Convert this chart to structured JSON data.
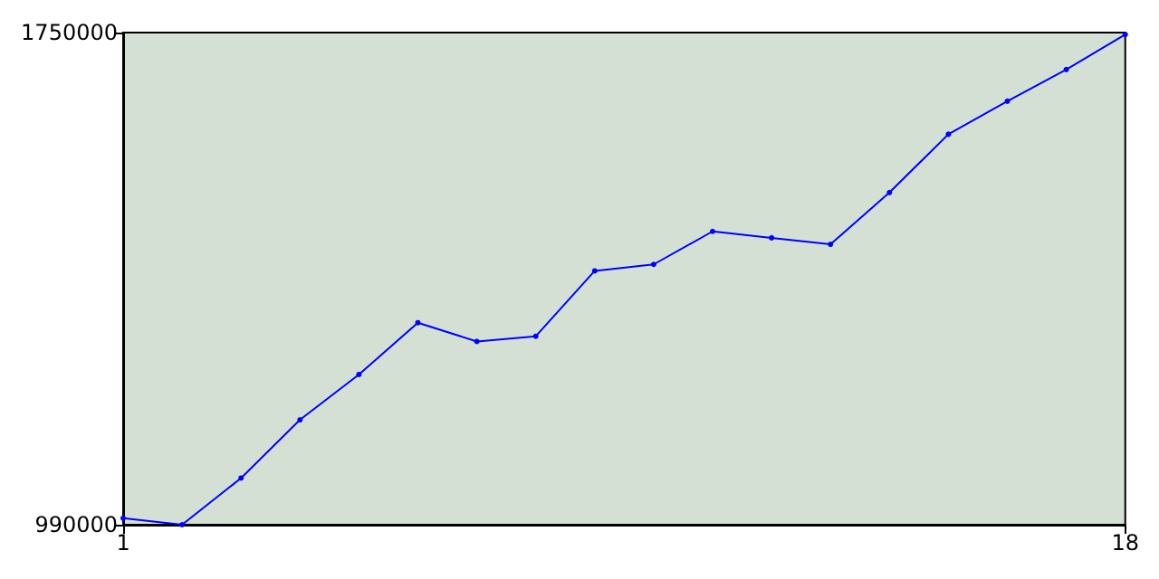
{
  "chart_data": {
    "type": "line",
    "x": [
      1,
      2,
      3,
      4,
      5,
      6,
      7,
      8,
      9,
      10,
      11,
      12,
      13,
      14,
      15,
      16,
      17,
      18
    ],
    "series": [
      {
        "color": "#0000ff",
        "values": [
          1000000,
          990000,
          1062000,
          1152000,
          1222000,
          1302000,
          1273000,
          1281000,
          1382000,
          1392000,
          1443000,
          1433000,
          1423000,
          1503000,
          1593000,
          1644000,
          1693000,
          1747000
        ]
      }
    ],
    "xlim": [
      1,
      18
    ],
    "xticks": [
      1,
      18
    ],
    "ylim": [
      990000,
      1750000
    ],
    "yticks": [
      990000,
      1750000
    ],
    "grid": false,
    "marker": "circle",
    "line_style": "solid"
  }
}
